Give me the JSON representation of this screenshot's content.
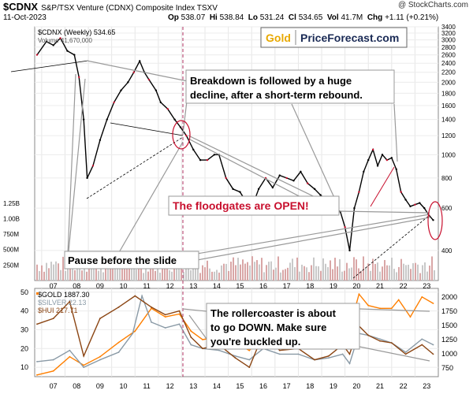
{
  "header": {
    "symbol": "$CDNX",
    "name": "S&P/TSX Venture (CDNX) Composite Index  TSXV",
    "date": "11-Oct-2023",
    "open_label": "Op",
    "open": "538.07",
    "high_label": "Hi",
    "high": "538.84",
    "low_label": "Lo",
    "low": "531.24",
    "close_label": "Cl",
    "close": "534.65",
    "vol_label": "Vol",
    "vol": "41.7M",
    "chg_label": "Chg",
    "chg": "+1.11 (+0.21%)",
    "source": "@ StockCharts.com"
  },
  "logo": {
    "gold": "Gold",
    "rest": "PriceForecast.com"
  },
  "colors": {
    "accent_red": "#c8102e",
    "gold_line": "#ff7f00",
    "silver_line": "#8a9aa6",
    "hui_line": "#8b4513",
    "cross_line": "#b03060"
  },
  "chart_data": [
    {
      "type": "line",
      "title": "$CDNX (Weekly) 534.65",
      "legend": [
        "$CDNX (Weekly) 534.65",
        "Volume 41,670,000"
      ],
      "x_ticks": [
        "07",
        "08",
        "09",
        "10",
        "11",
        "12",
        "13",
        "14",
        "15",
        "16",
        "17",
        "18",
        "19",
        "20",
        "21",
        "22",
        "23"
      ],
      "y_ticks_right": [
        "3400",
        "3200",
        "3000",
        "2800",
        "2600",
        "2400",
        "2200",
        "2000",
        "1800",
        "1600",
        "1400",
        "1200",
        "1000",
        "800",
        "600",
        "400"
      ],
      "volume_ticks_left": [
        "1.25B",
        "1.00B",
        "750M",
        "500M",
        "250M"
      ],
      "x_range": [
        2006.7,
        2024.0
      ],
      "y_range": [
        300,
        3400
      ],
      "y_scale": "log",
      "series": [
        {
          "x": [
            2006.8,
            2007.2,
            2007.5,
            2007.8,
            2008.1,
            2008.4,
            2008.6,
            2008.8,
            2008.95,
            2009.2,
            2009.5,
            2009.8,
            2010.1,
            2010.4,
            2010.7,
            2010.95,
            2011.2,
            2011.4,
            2011.6,
            2011.9,
            2012.1,
            2012.4,
            2012.7,
            2012.95,
            2013.2,
            2013.5,
            2013.8,
            2014.1,
            2014.4,
            2014.6,
            2014.9,
            2015.2,
            2015.5,
            2015.8,
            2016.0,
            2016.3,
            2016.6,
            2016.9,
            2017.2,
            2017.5,
            2017.8,
            2018.1,
            2018.4,
            2018.7,
            2018.95,
            2019.2,
            2019.5,
            2019.8,
            2020.0,
            2020.2,
            2020.4,
            2020.6,
            2020.8,
            2021.0,
            2021.2,
            2021.4,
            2021.6,
            2021.8,
            2022.0,
            2022.2,
            2022.4,
            2022.6,
            2022.8,
            2023.0,
            2023.2,
            2023.4,
            2023.6,
            2023.78
          ],
          "y": [
            2600,
            2950,
            2850,
            3050,
            2700,
            2600,
            2100,
            1400,
            800,
            900,
            1150,
            1400,
            1650,
            1850,
            2000,
            2200,
            2450,
            2200,
            2050,
            1850,
            1650,
            1550,
            1400,
            1300,
            1200,
            1050,
            950,
            950,
            1000,
            1000,
            800,
            720,
            700,
            630,
            600,
            720,
            800,
            730,
            820,
            800,
            780,
            850,
            760,
            720,
            680,
            650,
            610,
            580,
            500,
            400,
            600,
            700,
            850,
            950,
            1050,
            900,
            1000,
            950,
            970,
            870,
            700,
            650,
            610,
            620,
            630,
            600,
            560,
            535
          ]
        }
      ],
      "annotations": [
        "Breakdown is followed by a huge decline, after a short-term rebound.",
        "The floodgates are OPEN!",
        "Pause before the slide"
      ]
    },
    {
      "type": "line",
      "legend": [
        "$GOLD 1887.30",
        "$SILVER 22.13",
        "$HUI 217.71"
      ],
      "x_ticks": [
        "07",
        "08",
        "09",
        "10",
        "11",
        "12",
        "13",
        "14",
        "15",
        "16",
        "17",
        "18",
        "19",
        "20",
        "21",
        "22",
        "23"
      ],
      "y_ticks_left": [
        "50",
        "40",
        "30",
        "20",
        "10"
      ],
      "y_ticks_right": [
        "2000",
        "1750",
        "1500",
        "1250",
        "1000",
        "750"
      ],
      "x_range": [
        2006.7,
        2024.0
      ],
      "series": [
        {
          "name": "$GOLD",
          "axis": "right",
          "x": [
            2006.8,
            2007.5,
            2008.2,
            2008.8,
            2009.5,
            2010.3,
            2011.0,
            2011.7,
            2012.3,
            2012.9,
            2013.4,
            2013.9,
            2014.6,
            2015.3,
            2015.9,
            2016.5,
            2017.2,
            2018.0,
            2018.7,
            2019.3,
            2019.9,
            2020.4,
            2020.6,
            2021.0,
            2021.5,
            2022.0,
            2022.3,
            2022.8,
            2023.3,
            2023.78
          ],
          "y": [
            630,
            700,
            950,
            800,
            950,
            1200,
            1400,
            1800,
            1650,
            1700,
            1400,
            1250,
            1300,
            1200,
            1060,
            1350,
            1250,
            1330,
            1200,
            1300,
            1500,
            1750,
            2050,
            1850,
            1800,
            1800,
            1950,
            1650,
            2000,
            1887
          ]
        },
        {
          "name": "$SILVER",
          "axis": "left",
          "x": [
            2006.8,
            2007.5,
            2008.2,
            2008.8,
            2009.5,
            2010.3,
            2010.9,
            2011.3,
            2011.7,
            2012.3,
            2012.9,
            2013.4,
            2013.9,
            2014.6,
            2015.3,
            2015.9,
            2016.5,
            2017.2,
            2018.0,
            2018.7,
            2019.3,
            2019.9,
            2020.2,
            2020.6,
            2021.0,
            2021.5,
            2022.0,
            2022.6,
            2023.3,
            2023.78
          ],
          "y": [
            13,
            14,
            19,
            10,
            14,
            18,
            28,
            48,
            34,
            31,
            33,
            22,
            20,
            19,
            16,
            14,
            20,
            17,
            17,
            14,
            15,
            17,
            12,
            28,
            27,
            25,
            23,
            18,
            25,
            22
          ]
        },
        {
          "name": "$HUI",
          "axis": "left",
          "x": [
            2006.8,
            2007.5,
            2008.2,
            2008.8,
            2009.5,
            2010.3,
            2011.0,
            2011.7,
            2012.3,
            2012.9,
            2013.4,
            2013.9,
            2014.6,
            2015.3,
            2015.9,
            2016.5,
            2017.2,
            2018.0,
            2018.7,
            2019.3,
            2019.9,
            2020.2,
            2020.6,
            2021.0,
            2021.5,
            2022.0,
            2022.6,
            2023.3,
            2023.78
          ],
          "y": [
            33,
            36,
            45,
            16,
            36,
            42,
            48,
            42,
            38,
            40,
            26,
            20,
            22,
            15,
            10,
            28,
            19,
            20,
            14,
            16,
            22,
            17,
            32,
            27,
            24,
            23,
            17,
            22,
            17
          ]
        }
      ],
      "annotations": [
        "The rollercoaster is about to go DOWN. Make sure you're buckled up."
      ]
    }
  ]
}
